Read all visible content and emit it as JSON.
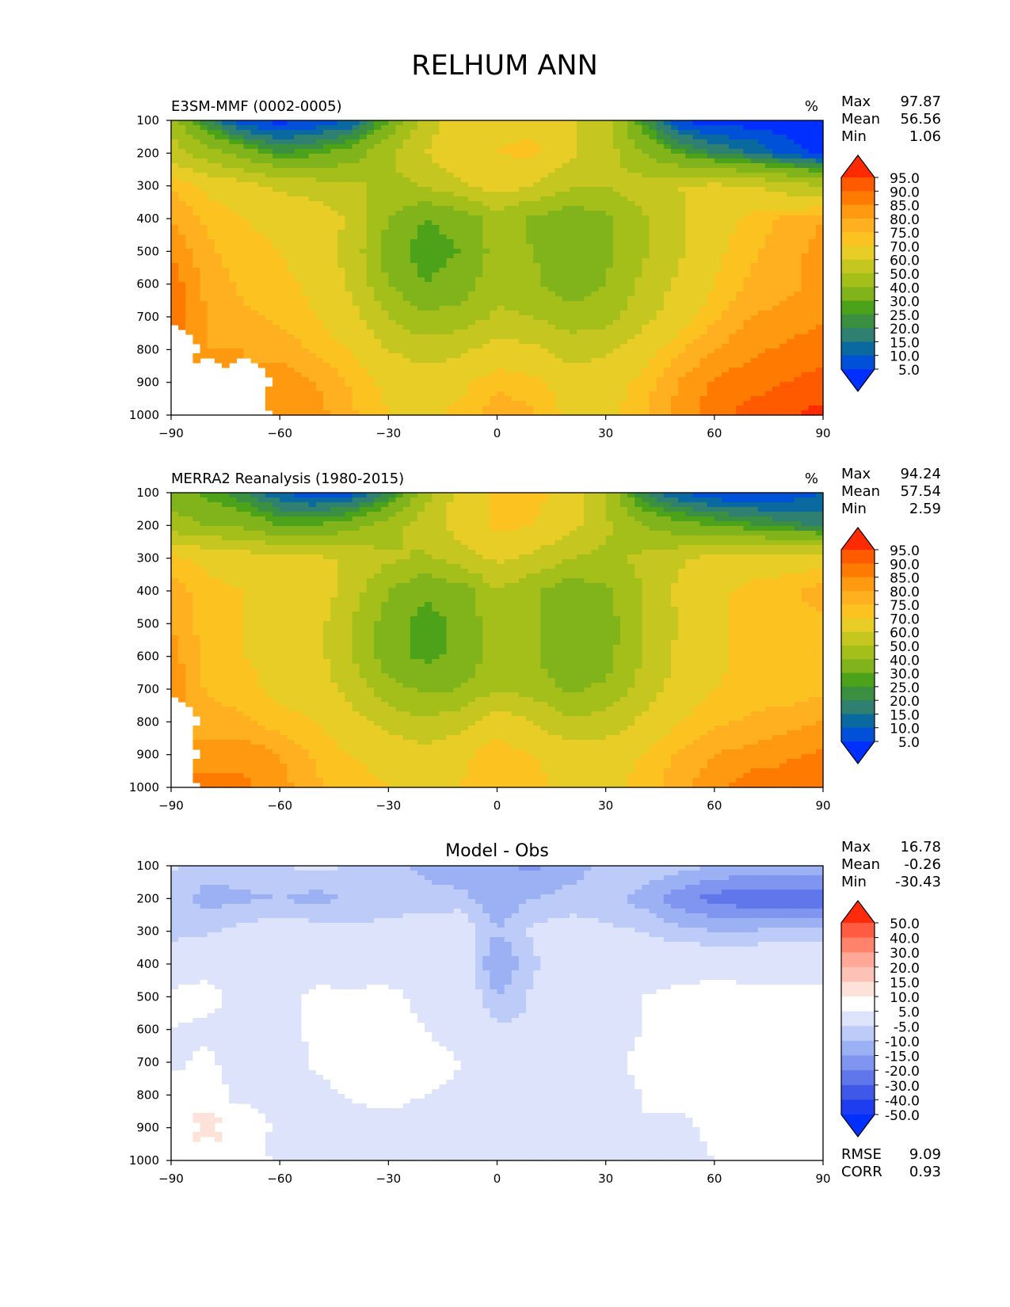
{
  "figure_title": "RELHUM ANN",
  "stat_labels": {
    "max": "Max",
    "mean": "Mean",
    "min": "Min"
  },
  "chart_data": [
    {
      "type": "heatmap",
      "subtype": "filled-contour",
      "title": "E3SM-MMF (0002-0005)",
      "units": "%",
      "xlabel": "",
      "ylabel": "",
      "xlim": [
        -90,
        90
      ],
      "ylim": [
        1000,
        100
      ],
      "x_ticks": [
        -90,
        -60,
        -30,
        0,
        30,
        60,
        90
      ],
      "y_ticks": [
        100,
        200,
        300,
        400,
        500,
        600,
        700,
        800,
        900,
        1000
      ],
      "stats": {
        "max": "97.87",
        "mean": "56.56",
        "min": "1.06"
      },
      "colorbar": {
        "levels": [
          "95.0",
          "90.0",
          "85.0",
          "80.0",
          "75.0",
          "70.0",
          "60.0",
          "50.0",
          "40.0",
          "30.0",
          "25.0",
          "20.0",
          "15.0",
          "10.0",
          "5.0"
        ],
        "colors": [
          "#ff2a00",
          "#ff5a00",
          "#ff7a00",
          "#ff9a10",
          "#ffb020",
          "#fcc220",
          "#e8cd26",
          "#c6c620",
          "#a4bf1a",
          "#80b41a",
          "#4ca31a",
          "#3a9040",
          "#2f8070",
          "#0a6aa0",
          "#0050d8",
          "#0030ff"
        ],
        "extend": "both"
      },
      "field": [
        [
          45,
          20,
          5,
          3,
          5,
          10,
          30,
          55,
          65,
          68,
          68,
          62,
          55,
          25,
          5,
          2,
          2,
          2,
          2
        ],
        [
          55,
          45,
          35,
          25,
          28,
          35,
          48,
          60,
          68,
          70,
          72,
          62,
          55,
          40,
          28,
          20,
          15,
          8,
          3
        ],
        [
          75,
          68,
          64,
          58,
          55,
          52,
          48,
          50,
          58,
          65,
          60,
          52,
          50,
          55,
          60,
          62,
          60,
          55,
          50
        ],
        [
          80,
          74,
          70,
          68,
          66,
          58,
          40,
          30,
          33,
          45,
          38,
          33,
          38,
          48,
          58,
          66,
          72,
          76,
          80
        ],
        [
          85,
          76,
          72,
          70,
          66,
          56,
          35,
          26,
          30,
          44,
          40,
          32,
          38,
          48,
          58,
          68,
          74,
          78,
          82
        ],
        [
          88,
          78,
          74,
          72,
          68,
          58,
          40,
          30,
          35,
          46,
          42,
          34,
          40,
          52,
          62,
          70,
          76,
          78,
          82
        ],
        [
          90,
          80,
          76,
          74,
          70,
          63,
          50,
          42,
          44,
          52,
          50,
          44,
          46,
          56,
          66,
          74,
          80,
          82,
          84
        ],
        [
          null,
          80,
          80,
          78,
          74,
          70,
          60,
          55,
          58,
          64,
          62,
          56,
          58,
          66,
          74,
          80,
          84,
          86,
          88
        ],
        [
          null,
          null,
          null,
          84,
          80,
          74,
          68,
          66,
          68,
          74,
          72,
          66,
          66,
          72,
          80,
          86,
          88,
          90,
          92
        ],
        [
          null,
          null,
          null,
          85,
          82,
          76,
          70,
          68,
          72,
          78,
          76,
          68,
          68,
          74,
          82,
          88,
          92,
          94,
          97
        ]
      ]
    },
    {
      "type": "heatmap",
      "subtype": "filled-contour",
      "title": "MERRA2 Reanalysis (1980-2015)",
      "units": "%",
      "xlabel": "",
      "ylabel": "",
      "xlim": [
        -90,
        90
      ],
      "ylim": [
        1000,
        100
      ],
      "x_ticks": [
        -90,
        -60,
        -30,
        0,
        30,
        60,
        90
      ],
      "y_ticks": [
        100,
        200,
        300,
        400,
        500,
        600,
        700,
        800,
        900,
        1000
      ],
      "stats": {
        "max": "94.24",
        "mean": "57.54",
        "min": "2.59"
      },
      "colorbar": {
        "levels": [
          "95.0",
          "90.0",
          "85.0",
          "80.0",
          "75.0",
          "70.0",
          "60.0",
          "50.0",
          "40.0",
          "30.0",
          "25.0",
          "20.0",
          "15.0",
          "10.0",
          "5.0"
        ],
        "colors": [
          "#ff2a00",
          "#ff5a00",
          "#ff7a00",
          "#ff9a10",
          "#ffb020",
          "#fcc220",
          "#e8cd26",
          "#c6c620",
          "#a4bf1a",
          "#80b41a",
          "#4ca31a",
          "#3a9040",
          "#2f8070",
          "#0a6aa0",
          "#0050d8",
          "#0030ff"
        ],
        "extend": "both"
      },
      "field": [
        [
          35,
          28,
          20,
          10,
          6,
          8,
          20,
          45,
          65,
          72,
          72,
          68,
          48,
          20,
          10,
          5,
          4,
          6,
          10
        ],
        [
          45,
          40,
          38,
          30,
          30,
          36,
          45,
          55,
          65,
          72,
          70,
          64,
          52,
          40,
          34,
          30,
          26,
          22,
          18
        ],
        [
          72,
          68,
          66,
          64,
          62,
          58,
          52,
          48,
          55,
          62,
          58,
          50,
          48,
          52,
          58,
          64,
          66,
          66,
          66
        ],
        [
          78,
          72,
          70,
          68,
          66,
          55,
          40,
          32,
          35,
          50,
          42,
          34,
          38,
          50,
          62,
          68,
          72,
          74,
          78
        ],
        [
          80,
          72,
          70,
          68,
          64,
          50,
          35,
          26,
          32,
          46,
          44,
          30,
          35,
          50,
          60,
          68,
          72,
          72,
          74
        ],
        [
          82,
          74,
          70,
          68,
          64,
          50,
          34,
          28,
          32,
          44,
          42,
          30,
          36,
          50,
          62,
          68,
          72,
          72,
          72
        ],
        [
          84,
          74,
          72,
          68,
          66,
          56,
          44,
          38,
          40,
          50,
          46,
          38,
          42,
          54,
          64,
          70,
          72,
          72,
          74
        ],
        [
          null,
          78,
          76,
          72,
          70,
          64,
          56,
          52,
          56,
          66,
          60,
          52,
          54,
          62,
          70,
          74,
          76,
          78,
          80
        ],
        [
          null,
          82,
          84,
          80,
          74,
          70,
          68,
          64,
          68,
          74,
          70,
          66,
          66,
          70,
          76,
          80,
          82,
          84,
          86
        ],
        [
          null,
          88,
          86,
          82,
          76,
          72,
          70,
          68,
          70,
          74,
          72,
          68,
          68,
          72,
          78,
          84,
          88,
          88,
          90
        ]
      ]
    },
    {
      "type": "heatmap",
      "subtype": "filled-contour",
      "title": "Model - Obs",
      "units": "",
      "xlabel": "",
      "ylabel": "",
      "xlim": [
        -90,
        90
      ],
      "ylim": [
        1000,
        100
      ],
      "x_ticks": [
        -90,
        -60,
        -30,
        0,
        30,
        60,
        90
      ],
      "y_ticks": [
        100,
        200,
        300,
        400,
        500,
        600,
        700,
        800,
        900,
        1000
      ],
      "stats": {
        "max": "16.78",
        "mean": "-0.26",
        "min": "-30.43"
      },
      "extra_stats": [
        {
          "label": "RMSE",
          "value": "9.09"
        },
        {
          "label": "CORR",
          "value": "0.93"
        }
      ],
      "colorbar": {
        "levels": [
          "50.0",
          "40.0",
          "30.0",
          "20.0",
          "15.0",
          "10.0",
          "5.0",
          "-5.0",
          "-10.0",
          "-15.0",
          "-20.0",
          "-30.0",
          "-40.0",
          "-50.0"
        ],
        "colors": [
          "#ff2a0a",
          "#ff5a42",
          "#ff826a",
          "#ffa898",
          "#fcc2b6",
          "#fde2da",
          "#ffffff",
          "#dde3fb",
          "#bccbf8",
          "#9cb0f4",
          "#7f95f0",
          "#6077ec",
          "#3f58e8",
          "#1e3df0",
          "#0030ff"
        ],
        "extend": "both"
      },
      "field": [
        [
          -4,
          -8,
          -7,
          -5,
          -4,
          -5,
          -7,
          -12,
          -15,
          -14,
          -16,
          -13,
          -8,
          -6,
          -8,
          -10,
          -12,
          -12,
          -10
        ],
        [
          -8,
          -12,
          -11,
          -10,
          -12,
          -9,
          -8,
          -7,
          -8,
          -14,
          -10,
          -8,
          -8,
          -12,
          -18,
          -22,
          -24,
          -24,
          -24
        ],
        [
          -8,
          -6,
          -3,
          -1,
          -2,
          -4,
          -3,
          -2,
          0,
          -10,
          -4,
          -2,
          -4,
          -5,
          -8,
          -10,
          -10,
          -8,
          -8
        ],
        [
          2,
          3,
          2,
          2,
          3,
          2,
          1,
          0,
          0,
          -16,
          -6,
          0,
          1,
          1,
          1,
          2,
          2,
          2,
          2
        ],
        [
          6,
          7,
          3,
          3,
          6,
          6,
          7,
          3,
          2,
          -10,
          -4,
          2,
          3,
          5,
          7,
          8,
          7,
          7,
          7
        ],
        [
          5,
          4,
          1,
          3,
          6,
          6,
          8,
          5,
          3,
          -4,
          -4,
          1,
          3,
          5,
          6,
          7,
          7,
          6,
          7
        ],
        [
          4,
          6,
          2,
          2,
          6,
          7,
          8,
          7,
          5,
          1,
          1,
          3,
          4,
          6,
          6,
          7,
          7,
          6,
          9
        ],
        [
          null,
          8,
          3,
          2,
          3,
          6,
          7,
          5,
          4,
          2,
          2,
          3,
          3,
          5,
          6,
          7,
          6,
          6,
          8
        ],
        [
          null,
          12,
          null,
          2,
          1,
          2,
          3,
          2,
          2,
          3,
          2,
          2,
          2,
          5,
          4,
          6,
          5,
          5,
          6
        ],
        [
          null,
          null,
          null,
          1,
          1,
          1,
          2,
          1,
          1,
          1,
          1,
          1,
          2,
          5,
          3,
          5,
          5,
          6,
          6
        ]
      ]
    }
  ]
}
